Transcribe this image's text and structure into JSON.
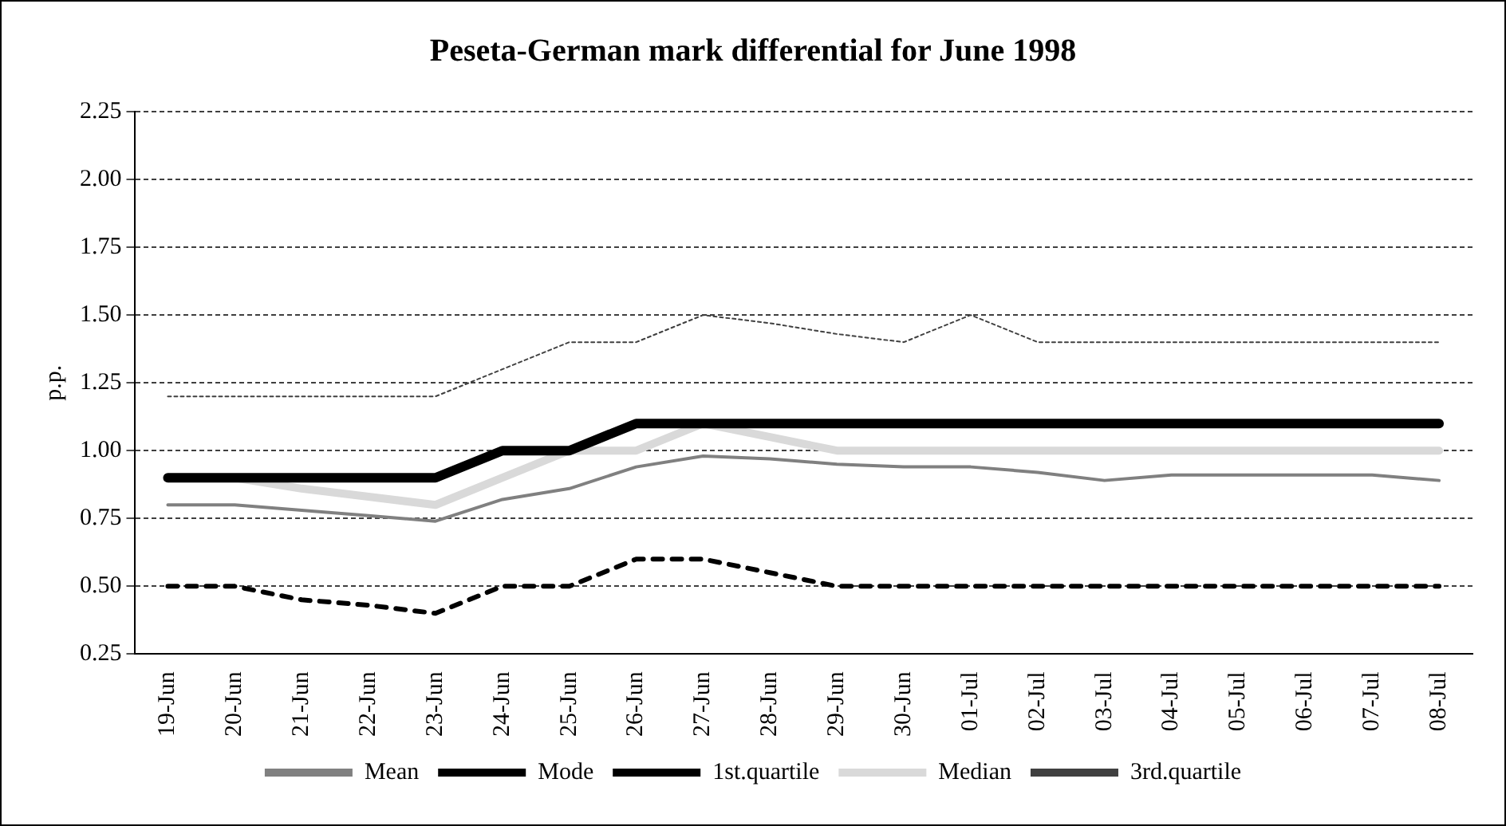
{
  "chart_data": {
    "type": "line",
    "title": "Peseta-German mark differential for June 1998",
    "ylabel": "p.p.",
    "categories": [
      "19-Jun",
      "20-Jun",
      "21-Jun",
      "22-Jun",
      "23-Jun",
      "24-Jun",
      "25-Jun",
      "26-Jun",
      "27-Jun",
      "28-Jun",
      "29-Jun",
      "30-Jun",
      "01-Jul",
      "02-Jul",
      "03-Jul",
      "04-Jul",
      "05-Jul",
      "06-Jul",
      "07-Jul",
      "08-Jul"
    ],
    "series": [
      {
        "name": "Mean",
        "color": "#808080",
        "line_style": "solid",
        "values": [
          0.8,
          0.8,
          0.78,
          0.76,
          0.74,
          0.82,
          0.86,
          0.94,
          0.98,
          0.97,
          0.95,
          0.94,
          0.94,
          0.92,
          0.89,
          0.91,
          0.91,
          0.91,
          0.91,
          0.89
        ]
      },
      {
        "name": "Mode",
        "color": "#000000",
        "line_style": "solid",
        "values": [
          0.9,
          0.9,
          0.9,
          0.9,
          0.9,
          1.0,
          1.0,
          1.1,
          1.1,
          1.1,
          1.1,
          1.1,
          1.1,
          1.1,
          1.1,
          1.1,
          1.1,
          1.1,
          1.1,
          1.1
        ]
      },
      {
        "name": "1st.quartile",
        "color": "#000000",
        "line_style": "dashed",
        "values": [
          0.5,
          0.5,
          0.45,
          0.43,
          0.4,
          0.5,
          0.5,
          0.6,
          0.6,
          0.55,
          0.5,
          0.5,
          0.5,
          0.5,
          0.5,
          0.5,
          0.5,
          0.5,
          0.5,
          0.5
        ]
      },
      {
        "name": "Median",
        "color": "#d9d9d9",
        "line_style": "solid",
        "values": [
          0.9,
          0.9,
          0.86,
          0.83,
          0.8,
          0.9,
          1.0,
          1.0,
          1.1,
          1.05,
          1.0,
          1.0,
          1.0,
          1.0,
          1.0,
          1.0,
          1.0,
          1.0,
          1.0,
          1.0
        ]
      },
      {
        "name": "3rd.quartile",
        "color": "#404040",
        "line_style": "dotted",
        "values": [
          1.2,
          1.2,
          1.2,
          1.2,
          1.2,
          1.3,
          1.4,
          1.4,
          1.5,
          1.47,
          1.43,
          1.4,
          1.5,
          1.4,
          1.4,
          1.4,
          1.4,
          1.4,
          1.4,
          1.4
        ]
      }
    ],
    "ylim": [
      0.25,
      2.25
    ],
    "yticks": [
      0.25,
      {
        "value": 0.5,
        "label": "0.50"
      },
      0.75,
      {
        "value": 1,
        "label": "1.00"
      },
      1.25,
      {
        "value": 1.5,
        "label": "1.50"
      },
      1.75,
      {
        "value": 2,
        "label": "2.00"
      },
      2.25
    ],
    "grid": "y",
    "legend": "bottom",
    "marker": "none"
  }
}
